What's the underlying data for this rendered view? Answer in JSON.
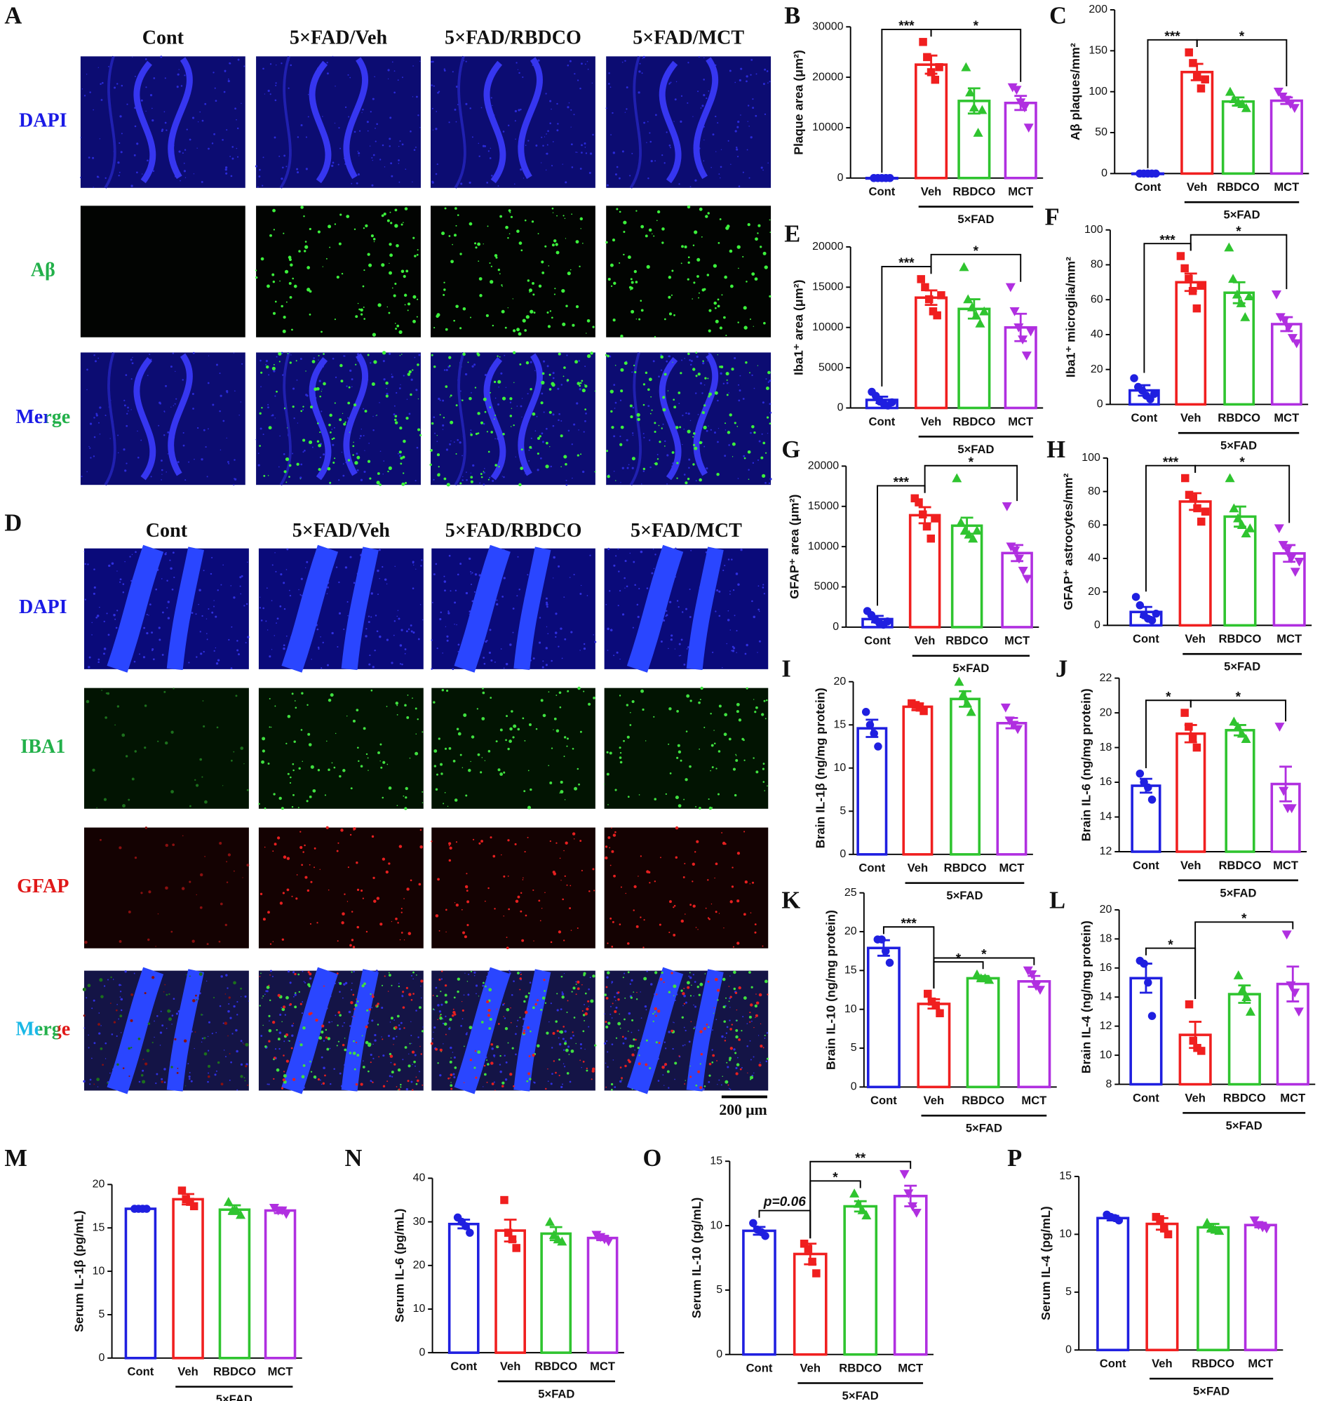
{
  "panel_a": {
    "letter": "A",
    "columns": [
      "Cont",
      "5×FAD/Veh",
      "5×FAD/RBDCO",
      "5×FAD/MCT"
    ],
    "rows": [
      "DAPI",
      "Aβ",
      "Merge"
    ]
  },
  "panel_d": {
    "letter": "D",
    "columns": [
      "Cont",
      "5×FAD/Veh",
      "5×FAD/RBDCO",
      "5×FAD/MCT"
    ],
    "rows": [
      "DAPI",
      "IBA1",
      "GFAP",
      "Merge"
    ],
    "scale_bar": "200 μm"
  },
  "chart_data": [
    {
      "type": "bar",
      "panel": "B",
      "ylabel": "Plaque area (μm²)",
      "categories": [
        "Cont",
        "Veh",
        "RBDCO",
        "MCT"
      ],
      "group_label": "5×FAD",
      "colors": [
        "#1f1fe0",
        "#f01f1f",
        "#2fc42f",
        "#b02fe0"
      ],
      "values": [
        0,
        22500,
        15300,
        14900
      ],
      "errors": [
        0,
        1800,
        2500,
        1400
      ],
      "points": [
        [
          0,
          0,
          0,
          0,
          0
        ],
        [
          27000,
          24000,
          21000,
          19500,
          22000
        ],
        [
          22000,
          17000,
          14000,
          9000,
          13500
        ],
        [
          18000,
          17500,
          15000,
          14000,
          10000
        ]
      ],
      "ylim": [
        0,
        30000
      ],
      "yticks": [
        0,
        10000,
        20000,
        30000
      ],
      "significance": [
        {
          "between": [
            "Cont",
            "Veh"
          ],
          "label": "***"
        },
        {
          "between": [
            "Veh",
            "MCT"
          ],
          "label": "*"
        }
      ]
    },
    {
      "type": "bar",
      "panel": "C",
      "ylabel": "Aβ plaques/mm²",
      "categories": [
        "Cont",
        "Veh",
        "RBDCO",
        "MCT"
      ],
      "group_label": "5×FAD",
      "colors": [
        "#1f1fe0",
        "#f01f1f",
        "#2fc42f",
        "#b02fe0"
      ],
      "values": [
        0,
        124,
        88,
        89
      ],
      "errors": [
        0,
        10,
        5,
        4
      ],
      "points": [
        [
          0,
          0,
          0,
          0,
          0
        ],
        [
          148,
          135,
          118,
          104,
          115
        ],
        [
          100,
          91,
          87,
          85,
          80
        ],
        [
          100,
          94,
          90,
          85,
          80
        ]
      ],
      "ylim": [
        0,
        200
      ],
      "yticks": [
        0,
        50,
        100,
        150,
        200
      ],
      "significance": [
        {
          "between": [
            "Cont",
            "Veh"
          ],
          "label": "***"
        },
        {
          "between": [
            "Veh",
            "MCT"
          ],
          "label": "*"
        }
      ]
    },
    {
      "type": "bar",
      "panel": "E",
      "ylabel": "Iba1⁺ area (μm²)",
      "categories": [
        "Cont",
        "Veh",
        "RBDCO",
        "MCT"
      ],
      "group_label": "5×FAD",
      "colors": [
        "#1f1fe0",
        "#f01f1f",
        "#2fc42f",
        "#b02fe0"
      ],
      "values": [
        1000,
        13700,
        12300,
        10000
      ],
      "errors": [
        400,
        900,
        1200,
        1700
      ],
      "points": [
        [
          2000,
          1500,
          800,
          500,
          300,
          700
        ],
        [
          16000,
          15000,
          13500,
          12000,
          11500,
          14000
        ],
        [
          17500,
          13500,
          12500,
          11500,
          10500,
          12000
        ],
        [
          15000,
          12000,
          10000,
          8500,
          6500,
          9500
        ]
      ],
      "ylim": [
        0,
        20000
      ],
      "yticks": [
        0,
        5000,
        10000,
        15000,
        20000
      ],
      "significance": [
        {
          "between": [
            "Cont",
            "Veh"
          ],
          "label": "***"
        },
        {
          "between": [
            "Veh",
            "MCT"
          ],
          "label": "*"
        }
      ]
    },
    {
      "type": "bar",
      "panel": "F",
      "ylabel": "Iba1⁺ microglia/mm²",
      "categories": [
        "Cont",
        "Veh",
        "RBDCO",
        "MCT"
      ],
      "group_label": "5×FAD",
      "colors": [
        "#1f1fe0",
        "#f01f1f",
        "#2fc42f",
        "#b02fe0"
      ],
      "values": [
        8,
        70,
        64,
        46
      ],
      "errors": [
        3,
        5,
        6,
        4
      ],
      "points": [
        [
          15,
          10,
          8,
          5,
          3,
          6
        ],
        [
          85,
          78,
          72,
          65,
          55,
          68
        ],
        [
          90,
          72,
          63,
          58,
          50,
          62
        ],
        [
          63,
          50,
          48,
          44,
          38,
          35
        ]
      ],
      "ylim": [
        0,
        100
      ],
      "yticks": [
        0,
        20,
        40,
        60,
        80,
        100
      ],
      "significance": [
        {
          "between": [
            "Cont",
            "Veh"
          ],
          "label": "***"
        },
        {
          "between": [
            "Veh",
            "MCT"
          ],
          "label": "*"
        }
      ]
    },
    {
      "type": "bar",
      "panel": "G",
      "ylabel": "GFAP⁺ area (μm²)",
      "categories": [
        "Cont",
        "Veh",
        "RBDCO",
        "MCT"
      ],
      "group_label": "5×FAD",
      "colors": [
        "#1f1fe0",
        "#f01f1f",
        "#2fc42f",
        "#b02fe0"
      ],
      "values": [
        1000,
        13900,
        12600,
        9200
      ],
      "errors": [
        400,
        1000,
        1000,
        1000
      ],
      "points": [
        [
          2000,
          1500,
          900,
          500,
          300,
          700
        ],
        [
          16000,
          15500,
          14000,
          12500,
          11000,
          13500
        ],
        [
          18500,
          13000,
          12000,
          11500,
          11000,
          12000
        ],
        [
          15000,
          10000,
          9500,
          8500,
          7000,
          6000
        ]
      ],
      "ylim": [
        0,
        20000
      ],
      "yticks": [
        0,
        5000,
        10000,
        15000,
        20000
      ],
      "significance": [
        {
          "between": [
            "Cont",
            "Veh"
          ],
          "label": "***"
        },
        {
          "between": [
            "Veh",
            "MCT"
          ],
          "label": "*"
        }
      ]
    },
    {
      "type": "bar",
      "panel": "H",
      "ylabel": "GFAP⁺ astrocytes/mm²",
      "categories": [
        "Cont",
        "Veh",
        "RBDCO",
        "MCT"
      ],
      "group_label": "5×FAD",
      "colors": [
        "#1f1fe0",
        "#f01f1f",
        "#2fc42f",
        "#b02fe0"
      ],
      "values": [
        8,
        74,
        65,
        43
      ],
      "errors": [
        3,
        5,
        6,
        5
      ],
      "points": [
        [
          17,
          12,
          6,
          4,
          3,
          7
        ],
        [
          88,
          78,
          76,
          70,
          62,
          68
        ],
        [
          88,
          70,
          64,
          60,
          55,
          58
        ],
        [
          58,
          48,
          45,
          40,
          32,
          38
        ]
      ],
      "ylim": [
        0,
        100
      ],
      "yticks": [
        0,
        20,
        40,
        60,
        80,
        100
      ],
      "significance": [
        {
          "between": [
            "Cont",
            "Veh"
          ],
          "label": "***"
        },
        {
          "between": [
            "Veh",
            "MCT"
          ],
          "label": "*"
        }
      ]
    },
    {
      "type": "bar",
      "panel": "I",
      "ylabel": "Brain IL-1β (ng/mg protein)",
      "categories": [
        "Cont",
        "Veh",
        "RBDCO",
        "MCT"
      ],
      "group_label": "5×FAD",
      "colors": [
        "#1f1fe0",
        "#f01f1f",
        "#2fc42f",
        "#b02fe0"
      ],
      "values": [
        14.6,
        17.1,
        18,
        15.2
      ],
      "errors": [
        1,
        0.4,
        0.9,
        0.6
      ],
      "points": [
        [
          16.5,
          15,
          14,
          12.5
        ],
        [
          17.5,
          17.3,
          17,
          16.6
        ],
        [
          20,
          18.5,
          17.5,
          16.5
        ],
        [
          17,
          15.5,
          15,
          14.5
        ]
      ],
      "ylim": [
        0,
        20
      ],
      "yticks": [
        0,
        5,
        10,
        15,
        20
      ],
      "significance": []
    },
    {
      "type": "bar",
      "panel": "J",
      "ylabel": "Brain IL-6 (ng/mg protein)",
      "categories": [
        "Cont",
        "Veh",
        "RBDCO",
        "MCT"
      ],
      "group_label": "5×FAD",
      "colors": [
        "#1f1fe0",
        "#f01f1f",
        "#2fc42f",
        "#b02fe0"
      ],
      "values": [
        15.8,
        18.8,
        19,
        15.9
      ],
      "errors": [
        0.4,
        0.5,
        0.3,
        1
      ],
      "points": [
        [
          16.5,
          16,
          15.7,
          15
        ],
        [
          20,
          19.2,
          18.5,
          18
        ],
        [
          19.5,
          19.2,
          18.8,
          18.5
        ],
        [
          19.2,
          15.5,
          14.5,
          14.5
        ]
      ],
      "ylim": [
        12,
        22
      ],
      "yticks": [
        12,
        14,
        16,
        18,
        20,
        22
      ],
      "significance": [
        {
          "between": [
            "Cont",
            "Veh"
          ],
          "label": "*"
        },
        {
          "between": [
            "Veh",
            "MCT"
          ],
          "label": "*"
        }
      ]
    },
    {
      "type": "bar",
      "panel": "K",
      "ylabel": "Brain IL-10 (ng/mg protein)",
      "categories": [
        "Cont",
        "Veh",
        "RBDCO",
        "MCT"
      ],
      "group_label": "5×FAD",
      "colors": [
        "#1f1fe0",
        "#f01f1f",
        "#2fc42f",
        "#b02fe0"
      ],
      "values": [
        17.9,
        10.7,
        14,
        13.6
      ],
      "errors": [
        1,
        0.6,
        0.3,
        0.7
      ],
      "points": [
        [
          19,
          19,
          17.5,
          16
        ],
        [
          12,
          11,
          10.5,
          9.5
        ],
        [
          14.5,
          14,
          14,
          13.8
        ],
        [
          15,
          14.5,
          13,
          12.5
        ]
      ],
      "ylim": [
        0,
        25
      ],
      "yticks": [
        0,
        5,
        10,
        15,
        20,
        25
      ],
      "significance": [
        {
          "between": [
            "Cont",
            "Veh"
          ],
          "label": "***"
        },
        {
          "between": [
            "Veh",
            "RBDCO"
          ],
          "label": "*"
        },
        {
          "between": [
            "Veh",
            "MCT"
          ],
          "label": "*"
        }
      ]
    },
    {
      "type": "bar",
      "panel": "L",
      "ylabel": "Brain IL-4 (ng/mg protein)",
      "categories": [
        "Cont",
        "Veh",
        "RBDCO",
        "MCT"
      ],
      "group_label": "5×FAD",
      "colors": [
        "#1f1fe0",
        "#f01f1f",
        "#2fc42f",
        "#b02fe0"
      ],
      "values": [
        15.3,
        11.4,
        14.2,
        14.9
      ],
      "errors": [
        1,
        0.9,
        0.6,
        1.2
      ],
      "points": [
        [
          16.5,
          16.3,
          15,
          12.7
        ],
        [
          13.5,
          11,
          10.5,
          10.3
        ],
        [
          15.5,
          14.5,
          14,
          13
        ],
        [
          18.3,
          14.8,
          14.3,
          13
        ]
      ],
      "ylim": [
        8,
        20
      ],
      "yticks": [
        8,
        10,
        12,
        14,
        16,
        18,
        20
      ],
      "significance": [
        {
          "between": [
            "Cont",
            "Veh"
          ],
          "label": "*"
        },
        {
          "between": [
            "Veh",
            "MCT"
          ],
          "label": "*"
        }
      ]
    },
    {
      "type": "bar",
      "panel": "M",
      "ylabel": "Serum IL-1β (pg/mL)",
      "categories": [
        "Cont",
        "Veh",
        "RBDCO",
        "MCT"
      ],
      "group_label": "5×FAD",
      "colors": [
        "#1f1fe0",
        "#f01f1f",
        "#2fc42f",
        "#b02fe0"
      ],
      "values": [
        17.2,
        18.3,
        17.1,
        17
      ],
      "errors": [
        0.1,
        0.6,
        0.5,
        0.3
      ],
      "points": [
        [
          17.2,
          17.2,
          17.2,
          17.2
        ],
        [
          19.3,
          18.3,
          18,
          17.5
        ],
        [
          18,
          17,
          17,
          16.5
        ],
        [
          17.3,
          17,
          17,
          16.6
        ]
      ],
      "ylim": [
        0,
        20
      ],
      "yticks": [
        0,
        5,
        10,
        15,
        20
      ],
      "significance": []
    },
    {
      "type": "bar",
      "panel": "N",
      "ylabel": "Serum IL-6 (pg/mL)",
      "categories": [
        "Cont",
        "Veh",
        "RBDCO",
        "MCT"
      ],
      "group_label": "5×FAD",
      "colors": [
        "#1f1fe0",
        "#f01f1f",
        "#2fc42f",
        "#b02fe0"
      ],
      "values": [
        29.5,
        28,
        27.3,
        26.3
      ],
      "errors": [
        1,
        2.5,
        1.5,
        0.5
      ],
      "points": [
        [
          31,
          30,
          29,
          27.5
        ],
        [
          35,
          27.5,
          26,
          24
        ],
        [
          30,
          27,
          26,
          25.5
        ],
        [
          27,
          26.5,
          26,
          25.5
        ]
      ],
      "ylim": [
        0,
        40
      ],
      "yticks": [
        0,
        10,
        20,
        30,
        40
      ],
      "significance": []
    },
    {
      "type": "bar",
      "panel": "O",
      "ylabel": "Serum IL-10 (pg/mL)",
      "categories": [
        "Cont",
        "Veh",
        "RBDCO",
        "MCT"
      ],
      "group_label": "5×FAD",
      "colors": [
        "#1f1fe0",
        "#f01f1f",
        "#2fc42f",
        "#b02fe0"
      ],
      "values": [
        9.6,
        7.8,
        11.5,
        12.3
      ],
      "errors": [
        0.3,
        0.8,
        0.4,
        0.8
      ],
      "points": [
        [
          10.2,
          9.7,
          9.5,
          9.2
        ],
        [
          8.6,
          8.2,
          7.2,
          6.3
        ],
        [
          12.5,
          11.7,
          11.2,
          10.8
        ],
        [
          14,
          12.5,
          11.5,
          11
        ]
      ],
      "ylim": [
        0,
        15
      ],
      "yticks": [
        0,
        5,
        10,
        15
      ],
      "significance": [
        {
          "between": [
            "Cont",
            "Veh"
          ],
          "label": "p=0.06"
        },
        {
          "between": [
            "Veh",
            "RBDCO"
          ],
          "label": "*"
        },
        {
          "between": [
            "Veh",
            "MCT"
          ],
          "label": "**"
        }
      ]
    },
    {
      "type": "bar",
      "panel": "P",
      "ylabel": "Serum IL-4 (pg/mL)",
      "categories": [
        "Cont",
        "Veh",
        "RBDCO",
        "MCT"
      ],
      "group_label": "5×FAD",
      "colors": [
        "#1f1fe0",
        "#f01f1f",
        "#2fc42f",
        "#b02fe0"
      ],
      "values": [
        11.4,
        10.9,
        10.6,
        10.8
      ],
      "errors": [
        0.2,
        0.5,
        0.3,
        0.2
      ],
      "points": [
        [
          11.7,
          11.5,
          11.4,
          11.2
        ],
        [
          11.5,
          11.3,
          10.5,
          10
        ],
        [
          11,
          10.5,
          10.4,
          10.3
        ],
        [
          11.2,
          10.8,
          10.6,
          10.5
        ]
      ],
      "ylim": [
        0,
        15
      ],
      "yticks": [
        0,
        5,
        10,
        15
      ],
      "significance": []
    }
  ]
}
